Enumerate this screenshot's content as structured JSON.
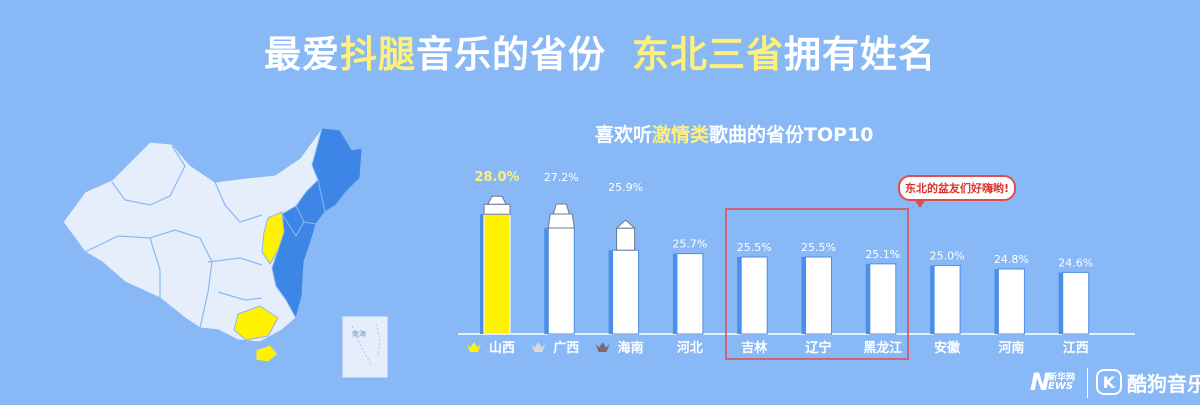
{
  "headline": {
    "part1": "最爱",
    "hl1": "抖腿",
    "part2": "音乐的省份",
    "hl2": "东北三省",
    "part3": "拥有姓名"
  },
  "map": {
    "south_sea_label": "南海"
  },
  "chart_title": {
    "pre": "喜欢听",
    "hl": "激情类",
    "post": "歌曲的省份TOP10"
  },
  "callout": "东北的盆友们好嗨哟!",
  "colors": {
    "background": "#88b8f5",
    "bar_top1": "#fff200",
    "bar_default": "#ffffff",
    "bar_edge": "#4d8ee6",
    "highlight_text": "#fff079",
    "highlight_box": "#e34b4b",
    "map_land": "#e6eefb",
    "map_northeast_highlight": "#3d86e6",
    "map_yellow_highlight": "#fff200",
    "crown_gold": "#fff200",
    "crown_silver": "#d8d8d8",
    "crown_bronze": "#7d6a70"
  },
  "chart_data": {
    "type": "bar",
    "title": "喜欢听激情类歌曲的省份TOP10",
    "categories": [
      "山西",
      "广西",
      "海南",
      "河北",
      "吉林",
      "辽宁",
      "黑龙江",
      "安徽",
      "河南",
      "江西"
    ],
    "values": [
      28.0,
      27.2,
      25.9,
      25.7,
      25.5,
      25.5,
      25.1,
      25.0,
      24.8,
      24.6
    ],
    "value_labels": [
      "28.0%",
      "27.2%",
      "25.9%",
      "25.7%",
      "25.5%",
      "25.5%",
      "25.1%",
      "25.0%",
      "24.8%",
      "24.6%"
    ],
    "crowns": [
      "gold-crown-icon",
      "silver-crown-icon",
      "bronze-crown-icon"
    ],
    "landmarks": [
      "shanxi-landmark-icon",
      "guangxi-landmark-icon",
      "hainan-landmark-icon"
    ],
    "highlighted_categories": [
      "吉林",
      "辽宁",
      "黑龙江"
    ],
    "ylim": [
      21,
      28.6
    ],
    "grid": false,
    "legend": "none"
  },
  "logos": {
    "news_mark": "N",
    "news_cn": "新华网",
    "news_en": "EWS",
    "kugou_mark": "K",
    "kugou_name": "酷狗音乐"
  }
}
